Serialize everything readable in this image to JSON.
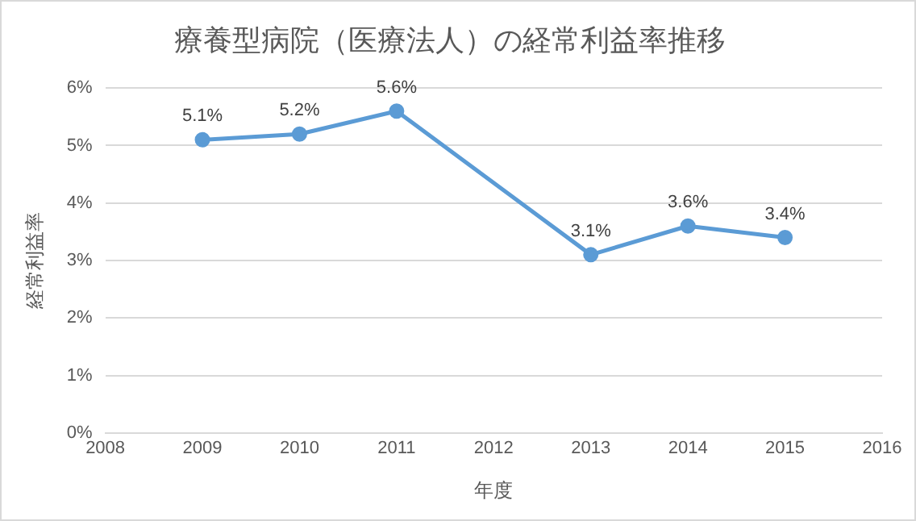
{
  "chart_data": {
    "type": "line",
    "title": "療養型病院（医療法人）の経常利益率推移",
    "xlabel": "年度",
    "ylabel": "経常利益率",
    "x": [
      2009,
      2010,
      2011,
      2013,
      2014,
      2015
    ],
    "series": [
      {
        "color": "#5b9bd5",
        "values": [
          5.1,
          5.2,
          5.6,
          3.1,
          3.6,
          3.4
        ],
        "value_labels": [
          "5.1%",
          "5.2%",
          "5.6%",
          "3.1%",
          "3.6%",
          "3.4%"
        ]
      }
    ],
    "xlim": [
      2008,
      2016
    ],
    "xticks": [
      2008,
      2009,
      2010,
      2011,
      2012,
      2013,
      2014,
      2015,
      2016
    ],
    "ylim": [
      0,
      6
    ],
    "yticks": [
      {
        "value": 0,
        "label": "0%"
      },
      {
        "value": 1,
        "label": "1%"
      },
      {
        "value": 2,
        "label": "2%"
      },
      {
        "value": 3,
        "label": "3%"
      },
      {
        "value": 4,
        "label": "4%"
      },
      {
        "value": 5,
        "label": "5%"
      },
      {
        "value": 6,
        "label": "6%"
      }
    ],
    "grid": "y",
    "legend": false,
    "marker": "circle",
    "line_style": "solid"
  }
}
